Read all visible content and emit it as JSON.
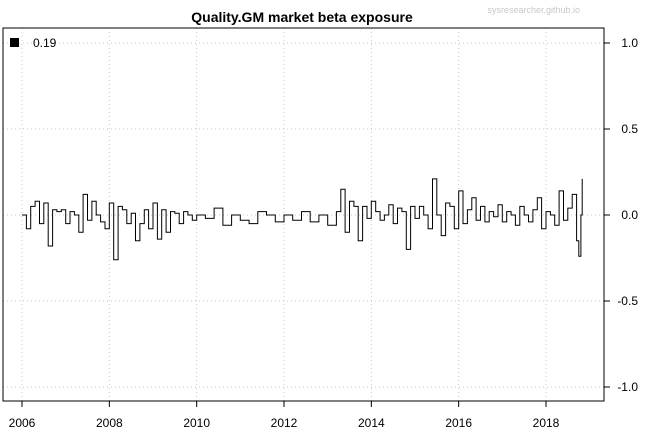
{
  "chart_data": {
    "type": "line",
    "title": "Quality.GM market beta exposure",
    "watermark": "sysresearcher.github.io",
    "xlabel": "",
    "ylabel": "",
    "xlim": [
      2006,
      2019.2
    ],
    "ylim": [
      -1.1,
      1.1
    ],
    "x_ticks": [
      2006,
      2008,
      2010,
      2012,
      2014,
      2016,
      2018
    ],
    "y_ticks": [
      -1.0,
      -0.5,
      0.0,
      0.5,
      1.0
    ],
    "y_tick_labels": [
      "-1.0",
      "-0.5",
      "0.0",
      "0.5",
      "1.0"
    ],
    "y_axis_side": "right",
    "grid": "dotted",
    "legend": {
      "position": "top-left",
      "entries": [
        {
          "label": "0.19",
          "color": "#000000"
        }
      ]
    },
    "series": [
      {
        "color": "#000000",
        "x": [
          2006.0,
          2006.1,
          2006.2,
          2006.3,
          2006.4,
          2006.5,
          2006.6,
          2006.7,
          2006.8,
          2006.9,
          2007.0,
          2007.1,
          2007.2,
          2007.3,
          2007.4,
          2007.5,
          2007.6,
          2007.7,
          2007.8,
          2007.9,
          2008.0,
          2008.1,
          2008.2,
          2008.3,
          2008.4,
          2008.5,
          2008.6,
          2008.7,
          2008.8,
          2008.9,
          2009.0,
          2009.1,
          2009.2,
          2009.3,
          2009.4,
          2009.5,
          2009.6,
          2009.7,
          2009.8,
          2009.9,
          2010.0,
          2010.2,
          2010.4,
          2010.6,
          2010.8,
          2011.0,
          2011.2,
          2011.4,
          2011.6,
          2011.8,
          2012.0,
          2012.2,
          2012.4,
          2012.6,
          2012.8,
          2013.0,
          2013.2,
          2013.3,
          2013.4,
          2013.5,
          2013.6,
          2013.7,
          2013.8,
          2013.9,
          2014.0,
          2014.1,
          2014.2,
          2014.3,
          2014.4,
          2014.5,
          2014.6,
          2014.7,
          2014.8,
          2014.9,
          2015.0,
          2015.1,
          2015.2,
          2015.3,
          2015.4,
          2015.5,
          2015.6,
          2015.7,
          2015.8,
          2015.9,
          2016.0,
          2016.1,
          2016.2,
          2016.3,
          2016.4,
          2016.5,
          2016.6,
          2016.7,
          2016.8,
          2016.9,
          2017.0,
          2017.1,
          2017.2,
          2017.3,
          2017.4,
          2017.5,
          2017.6,
          2017.7,
          2017.8,
          2017.9,
          2018.0,
          2018.1,
          2018.2,
          2018.3,
          2018.4,
          2018.5,
          2018.6,
          2018.7,
          2018.75,
          2018.8,
          2018.83
        ],
        "y": [
          0.0,
          -0.08,
          0.05,
          0.08,
          -0.05,
          0.07,
          -0.18,
          0.03,
          0.02,
          0.03,
          -0.05,
          0.02,
          0.0,
          -0.1,
          0.12,
          -0.03,
          0.08,
          0.0,
          -0.04,
          -0.08,
          0.07,
          -0.26,
          0.05,
          0.03,
          -0.05,
          0.01,
          -0.15,
          -0.05,
          0.03,
          -0.08,
          0.07,
          -0.14,
          0.03,
          -0.1,
          0.02,
          0.01,
          -0.05,
          0.02,
          0.0,
          -0.03,
          0.0,
          -0.02,
          0.04,
          -0.06,
          0.0,
          -0.03,
          -0.05,
          0.02,
          0.0,
          -0.04,
          0.0,
          -0.03,
          0.02,
          -0.04,
          0.0,
          -0.06,
          0.02,
          0.15,
          -0.1,
          0.08,
          0.05,
          -0.15,
          0.05,
          -0.02,
          0.08,
          0.02,
          -0.03,
          0.0,
          0.06,
          -0.05,
          0.04,
          0.02,
          -0.2,
          0.05,
          -0.02,
          0.05,
          0.0,
          -0.08,
          0.21,
          0.0,
          -0.12,
          0.07,
          0.05,
          -0.08,
          0.14,
          -0.05,
          0.03,
          0.1,
          -0.03,
          0.05,
          -0.04,
          0.02,
          -0.01,
          0.06,
          -0.04,
          0.02,
          0.0,
          -0.06,
          0.05,
          0.0,
          -0.04,
          0.03,
          0.1,
          -0.08,
          0.02,
          0.0,
          -0.06,
          0.14,
          -0.03,
          0.04,
          0.12,
          -0.15,
          -0.24,
          0.0,
          0.21
        ]
      }
    ]
  }
}
